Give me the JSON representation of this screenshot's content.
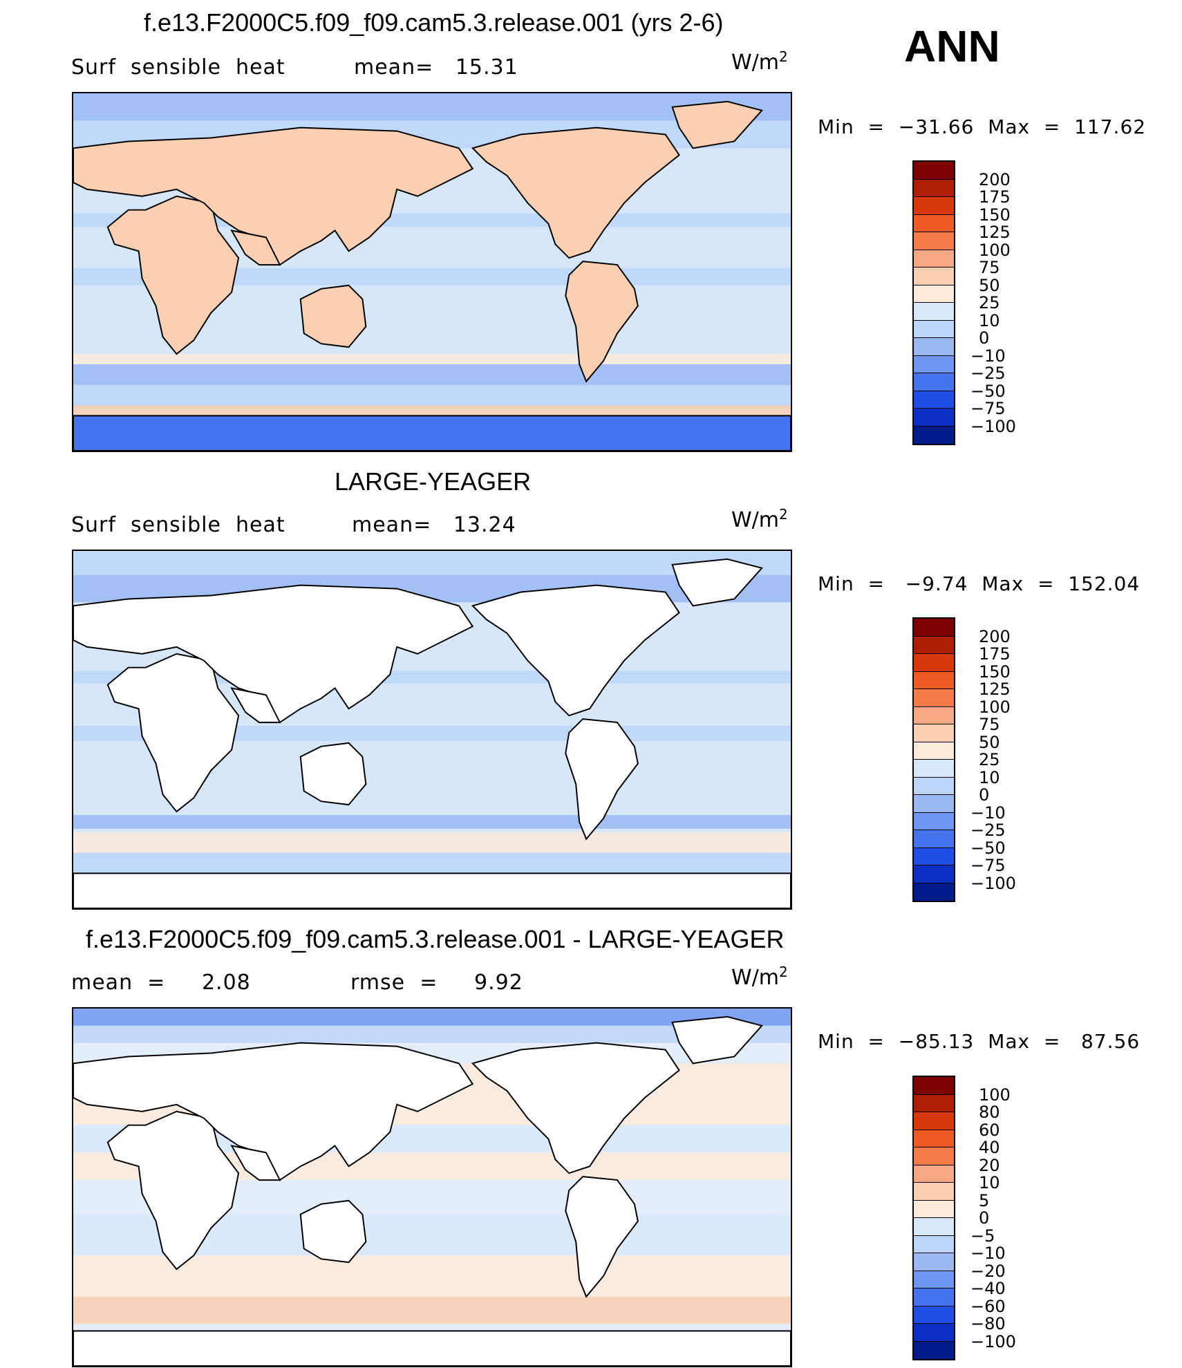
{
  "header": {
    "season": "ANN"
  },
  "panels": [
    {
      "title": "f.e13.F2000C5.f09_f09.cam5.3.release.001 (yrs 2-6)",
      "left_label": "Surf  sensible  heat",
      "stat_label": "mean=   15.31",
      "units_base": "W/m",
      "units_exp": "2",
      "minmax": "Min  =  −31.66  Max  =  117.62",
      "colorbar_levels": [
        "200",
        "175",
        "150",
        "125",
        "100",
        "75",
        "50",
        "25",
        "10",
        "0",
        "−10",
        "−25",
        "−50",
        "−75",
        "−100"
      ],
      "land_filled": true
    },
    {
      "title": "LARGE-YEAGER",
      "left_label": "Surf  sensible  heat",
      "stat_label": "mean=   13.24",
      "units_base": "W/m",
      "units_exp": "2",
      "minmax": "Min  =   −9.74  Max  =  152.04",
      "colorbar_levels": [
        "200",
        "175",
        "150",
        "125",
        "100",
        "75",
        "50",
        "25",
        "10",
        "0",
        "−10",
        "−25",
        "−50",
        "−75",
        "−100"
      ],
      "land_filled": false
    },
    {
      "title": "f.e13.F2000C5.f09_f09.cam5.3.release.001 - LARGE-YEAGER",
      "left_label": "mean  =     2.08",
      "stat_label": "rmse  =     9.92",
      "units_base": "W/m",
      "units_exp": "2",
      "minmax": "Min  =  −85.13  Max  =   87.56",
      "colorbar_levels": [
        "100",
        "80",
        "60",
        "40",
        "20",
        "10",
        "5",
        "0",
        "−5",
        "−10",
        "−20",
        "−40",
        "−60",
        "−80",
        "−100"
      ],
      "land_filled": false
    }
  ],
  "colors": {
    "palette": [
      "#7f0000",
      "#b01e00",
      "#d9380a",
      "#ee5a24",
      "#f47a48",
      "#f6a883",
      "#fbcfb2",
      "#fdeadb",
      "#d8e9fb",
      "#bcd5f8",
      "#9ab9f3",
      "#6e97ef",
      "#4474ee",
      "#1e4fe6",
      "#0b2ec3",
      "#001b8b"
    ],
    "map_background": "#d6e7fa"
  },
  "chart_data": [
    {
      "type": "heatmap",
      "title": "f.e13.F2000C5.f09_f09.cam5.3.release.001 (yrs 2-6)",
      "variable": "Surf  sensible  heat",
      "units": "W/m2",
      "mean": 15.31,
      "min": -31.66,
      "max": 117.62,
      "contour_levels": [
        200,
        175,
        150,
        125,
        100,
        75,
        50,
        25,
        10,
        0,
        -10,
        -25,
        -50,
        -75,
        -100
      ]
    },
    {
      "type": "heatmap",
      "title": "LARGE-YEAGER",
      "variable": "Surf  sensible  heat",
      "units": "W/m2",
      "mean": 13.24,
      "min": -9.74,
      "max": 152.04,
      "contour_levels": [
        200,
        175,
        150,
        125,
        100,
        75,
        50,
        25,
        10,
        0,
        -10,
        -25,
        -50,
        -75,
        -100
      ]
    },
    {
      "type": "heatmap",
      "title": "f.e13.F2000C5.f09_f09.cam5.3.release.001 - LARGE-YEAGER",
      "units": "W/m2",
      "mean": 2.08,
      "rmse": 9.92,
      "min": -85.13,
      "max": 87.56,
      "contour_levels": [
        100,
        80,
        60,
        40,
        20,
        10,
        5,
        0,
        -5,
        -10,
        -20,
        -40,
        -60,
        -80,
        -100
      ]
    }
  ]
}
